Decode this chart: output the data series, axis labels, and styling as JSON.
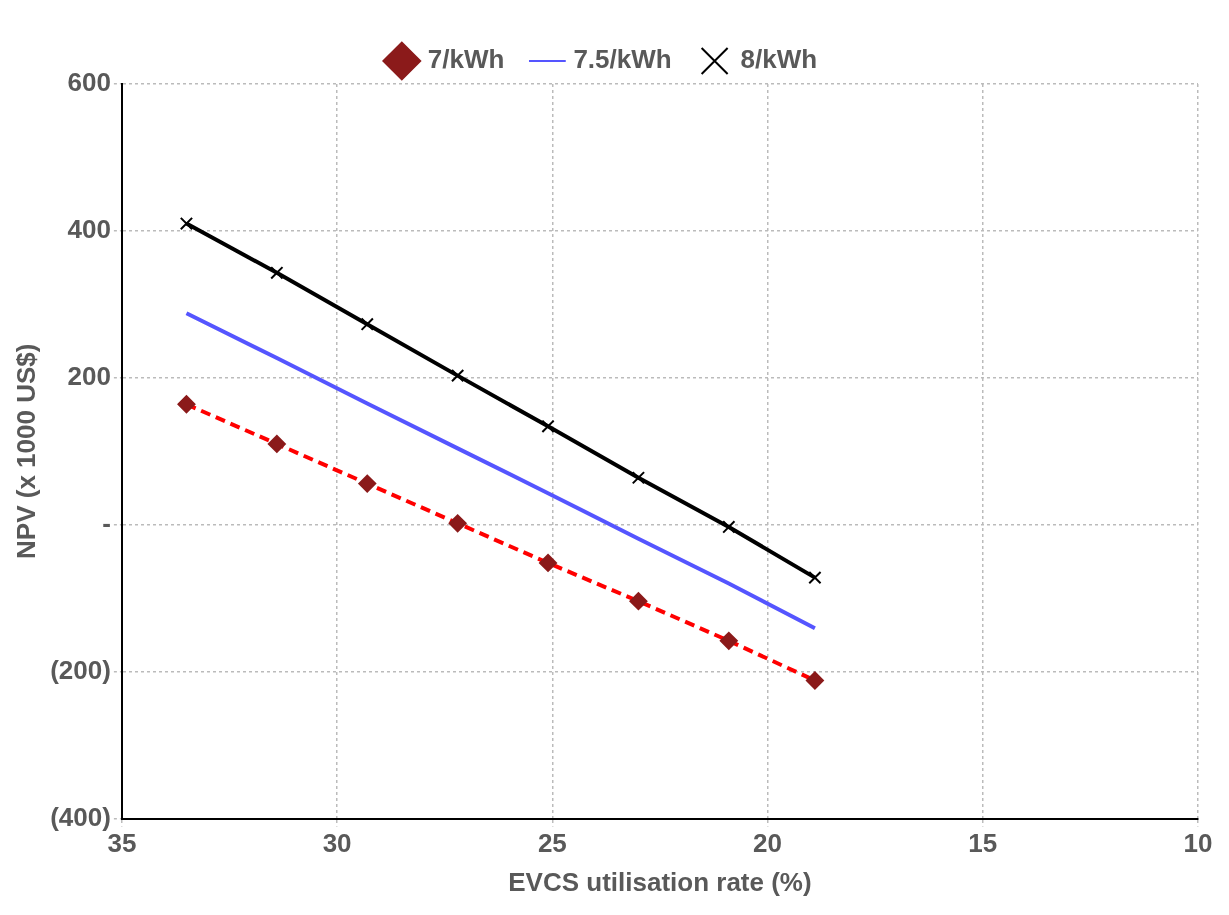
{
  "chart_data": {
    "type": "line",
    "xlabel": "EVCS utilisation rate (%)",
    "ylabel": "NPV (x 1000 US$)",
    "x": [
      33.5,
      31.4,
      29.3,
      27.2,
      25.1,
      23.0,
      20.9,
      18.9
    ],
    "series": [
      {
        "name": "7/kWh",
        "color": "#ff0000",
        "marker": "diamond",
        "line_style": "dashed",
        "values": [
          164,
          110,
          56,
          2,
          -52,
          -104,
          -158,
          -212
        ]
      },
      {
        "name": "7.5/kWh",
        "color": "#5555ff",
        "marker": "none",
        "line_style": "solid",
        "values": [
          288,
          227,
          165,
          104,
          43,
          -19,
          -80,
          -141
        ]
      },
      {
        "name": "8/kWh",
        "color": "#000000",
        "marker": "cross",
        "line_style": "solid",
        "values": [
          410,
          343,
          273,
          203,
          134,
          64,
          -3,
          -72
        ]
      }
    ],
    "xlim": [
      35,
      10
    ],
    "xticks": [
      35,
      30,
      25,
      20,
      15,
      10
    ],
    "ylim": [
      -400,
      600
    ],
    "yticks": [
      {
        "value": -400,
        "label": "(400)"
      },
      {
        "value": -200,
        "label": "(200)"
      },
      {
        "value": 0,
        "label": "-"
      },
      200,
      400,
      600
    ],
    "grid": true,
    "legend": "top"
  }
}
